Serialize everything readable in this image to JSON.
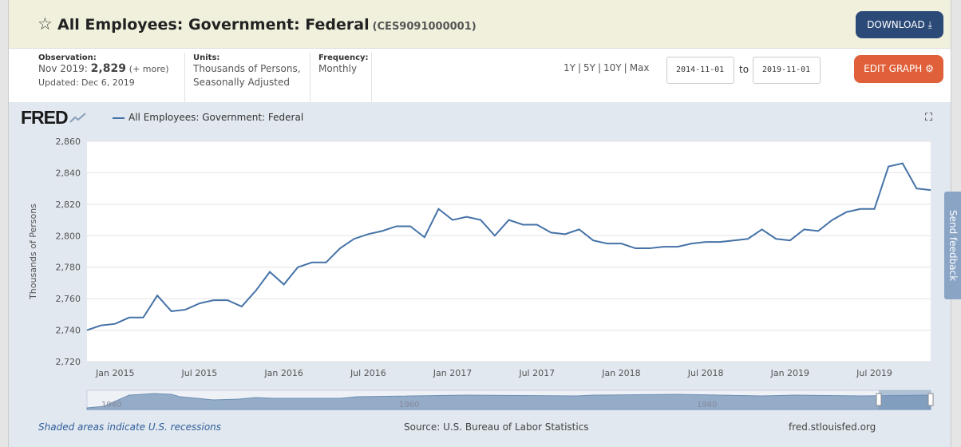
{
  "header": {
    "title": "All Employees: Government: Federal",
    "series_id": "(CES9091000001)",
    "download_label": "DOWNLOAD",
    "edit_label": "EDIT GRAPH"
  },
  "meta": {
    "observation_label": "Observation:",
    "observation_date": "Nov 2019:",
    "observation_value": "2,829",
    "more": "(+ more)",
    "updated": "Updated: Dec 6, 2019",
    "units_label": "Units:",
    "units_line1": "Thousands of Persons,",
    "units_line2": "Seasonally Adjusted",
    "frequency_label": "Frequency:",
    "frequency": "Monthly"
  },
  "ranges": [
    "1Y",
    "5Y",
    "10Y",
    "Max"
  ],
  "date_from": "2014-11-01",
  "date_to": "2019-11-01",
  "to_label": "to",
  "footer": {
    "recessions": "Shaded areas indicate U.S. recessions",
    "source": "Source: U.S. Bureau of Labor Statistics",
    "site": "fred.stlouisfed.org"
  },
  "feedback": "Send feedback",
  "logo": "FRED",
  "colors": {
    "line": "#4572a7",
    "download": "#2c4a78",
    "edit": "#e0603a"
  },
  "chart_data": {
    "type": "line",
    "series": [
      {
        "name": "All Employees: Government: Federal",
        "start": "2014-11",
        "frequency": "monthly",
        "values": [
          2740,
          2743,
          2744,
          2748,
          2748,
          2762,
          2752,
          2753,
          2757,
          2759,
          2759,
          2755,
          2765,
          2777,
          2769,
          2780,
          2783,
          2783,
          2792,
          2798,
          2801,
          2803,
          2806,
          2806,
          2799,
          2817,
          2810,
          2812,
          2810,
          2800,
          2810,
          2807,
          2807,
          2802,
          2801,
          2804,
          2797,
          2795,
          2795,
          2792,
          2792,
          2793,
          2793,
          2795,
          2796,
          2796,
          2797,
          2798,
          2804,
          2798,
          2797,
          2804,
          2803,
          2810,
          2815,
          2817,
          2817,
          2844,
          2846,
          2830,
          2829
        ]
      }
    ],
    "ylabel": "Thousands of Persons",
    "ylim": [
      2720,
      2860
    ],
    "yticks": [
      "2,720",
      "2,740",
      "2,760",
      "2,780",
      "2,800",
      "2,820",
      "2,840",
      "2,860"
    ],
    "xticks": [
      {
        "label": "Jan 2015",
        "index": 2
      },
      {
        "label": "Jul 2015",
        "index": 8
      },
      {
        "label": "Jan 2016",
        "index": 14
      },
      {
        "label": "Jul 2016",
        "index": 20
      },
      {
        "label": "Jan 2017",
        "index": 26
      },
      {
        "label": "Jul 2017",
        "index": 32
      },
      {
        "label": "Jan 2018",
        "index": 38
      },
      {
        "label": "Jul 2018",
        "index": 44
      },
      {
        "label": "Jan 2019",
        "index": 50
      },
      {
        "label": "Jul 2019",
        "index": 56
      }
    ],
    "navigator_labels": [
      "1940",
      "1960",
      "1980",
      "2000"
    ],
    "grid": true
  }
}
